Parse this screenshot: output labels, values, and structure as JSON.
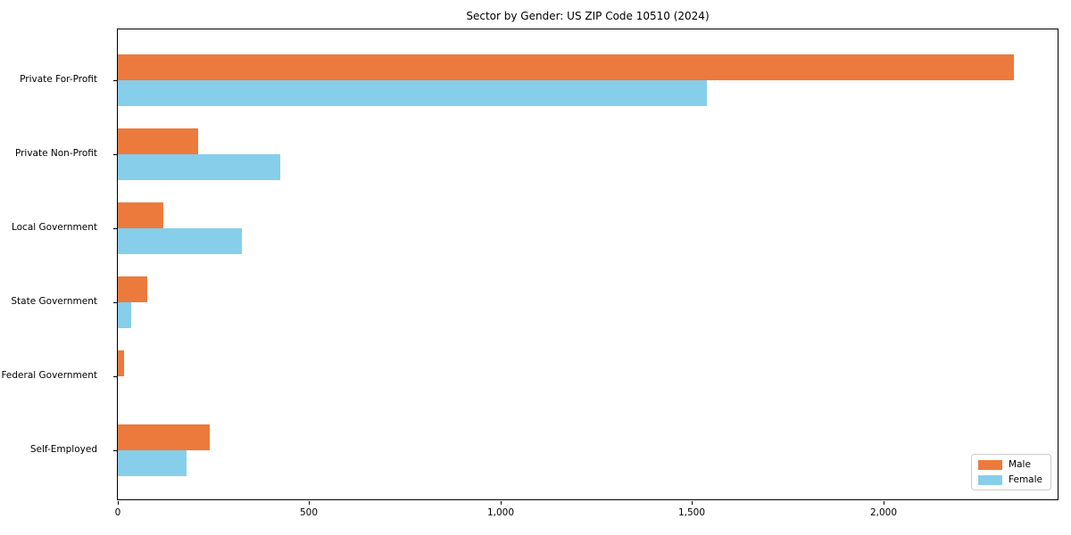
{
  "title": "Sector by Gender: US ZIP Code 10510 (2024)",
  "chart_data": {
    "type": "bar",
    "orientation": "horizontal",
    "title": "Sector by Gender: US ZIP Code 10510 (2024)",
    "xlabel": "",
    "ylabel": "",
    "categories": [
      "Private For-Profit",
      "Private Non-Profit",
      "Local Government",
      "State Government",
      "Federal Government",
      "Self-Employed"
    ],
    "series": [
      {
        "name": "Male",
        "color": "#ec7a3d",
        "values": [
          2340,
          210,
          120,
          77,
          16,
          240
        ]
      },
      {
        "name": "Female",
        "color": "#87ceeb",
        "values": [
          1540,
          425,
          325,
          35,
          0,
          180
        ]
      }
    ],
    "xlim": [
      0,
      2460
    ],
    "x_ticks": [
      0,
      500,
      1000,
      1500,
      2000
    ],
    "x_tick_labels": [
      "0",
      "500",
      "1,000",
      "1,500",
      "2,000"
    ],
    "grid": false,
    "legend_position": "lower right"
  },
  "legend": {
    "male_label": "Male",
    "female_label": "Female"
  }
}
